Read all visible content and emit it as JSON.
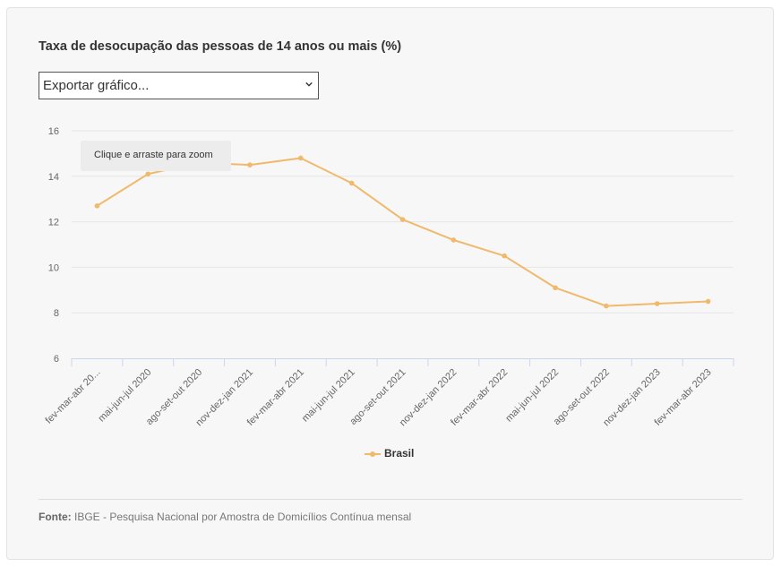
{
  "chart_title": "Taxa de desocupação das pessoas de 14 anos ou mais (%)",
  "export_select": {
    "selected": "Exportar gráfico..."
  },
  "zoom_tooltip": "Clique e arraste para zoom",
  "source": {
    "label": "Fonte:",
    "text": "IBGE - Pesquisa Nacional por Amostra de Domicílios Contínua mensal"
  },
  "colors": {
    "series": "#f0b96b",
    "grid": "#e6e6e6",
    "axis": "#ccd6eb"
  },
  "chart_data": {
    "type": "line",
    "title": "Taxa de desocupação das pessoas de 14 anos ou mais (%)",
    "categories": [
      "fev-mar-abr 20...",
      "mai-jun-jul 2020",
      "ago-set-out 2020",
      "nov-dez-jan 2021",
      "fev-mar-abr 2021",
      "mai-jun-jul 2021",
      "ago-set-out 2021",
      "nov-dez-jan 2022",
      "fev-mar-abr 2022",
      "mai-jun-jul 2022",
      "ago-set-out 2022",
      "nov-dez-jan 2023",
      "fev-mar-abr 2023"
    ],
    "series": [
      {
        "name": "Brasil",
        "values": [
          12.7,
          14.1,
          14.6,
          14.5,
          14.8,
          13.7,
          12.1,
          11.2,
          10.5,
          9.1,
          8.3,
          8.4,
          8.5
        ]
      }
    ],
    "ylim": [
      6,
      16
    ],
    "yticks": [
      6,
      8,
      10,
      12,
      14,
      16
    ],
    "grid": true,
    "legend": "bottom-center"
  }
}
